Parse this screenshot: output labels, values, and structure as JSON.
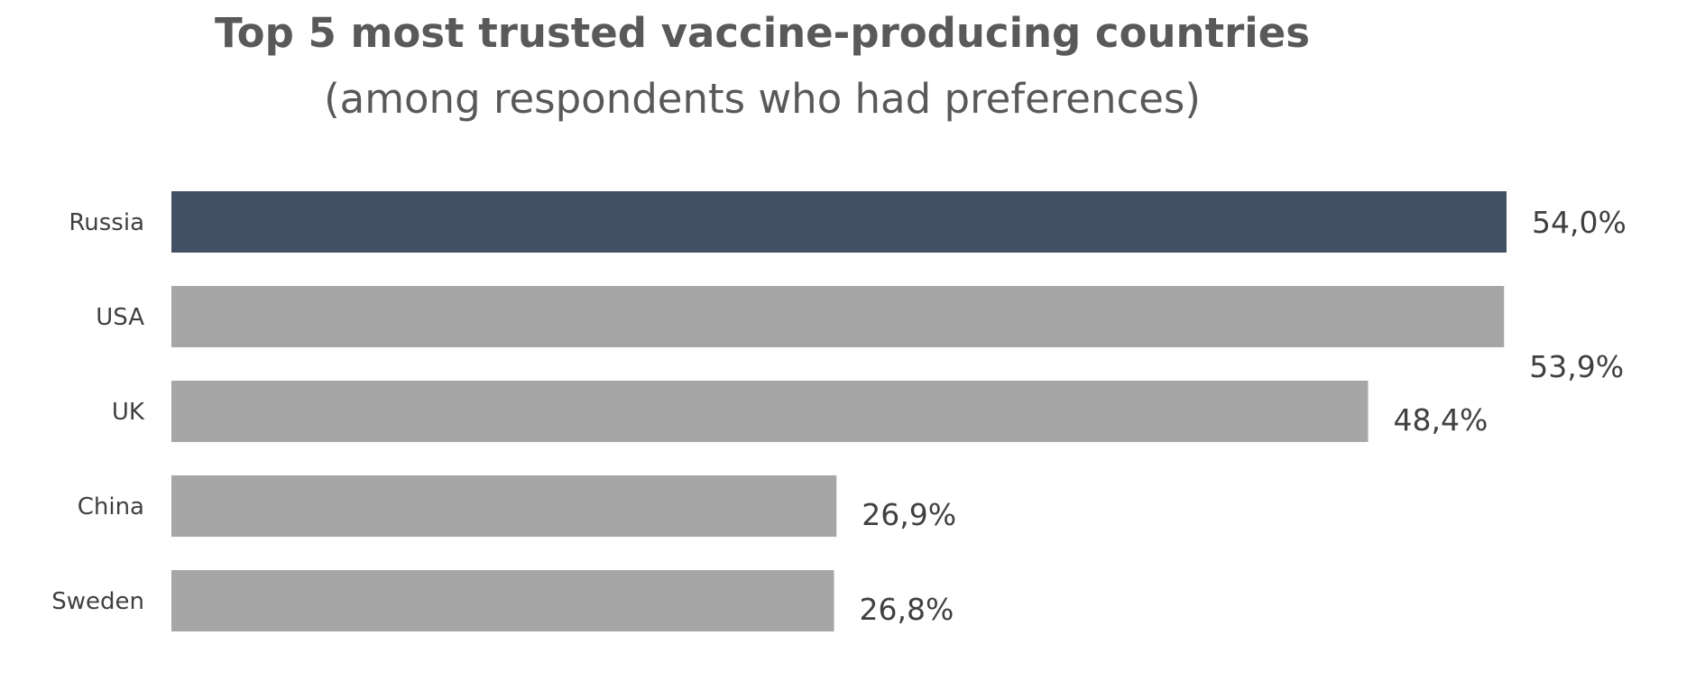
{
  "chart_data": {
    "type": "bar",
    "orientation": "horizontal",
    "title": "Top 5 most trusted vaccine-producing countries",
    "subtitle": "(among respondents who had preferences)",
    "categories": [
      "Russia",
      "USA",
      "UK",
      "China",
      "Sweden"
    ],
    "values": [
      54.0,
      53.9,
      48.4,
      26.9,
      26.8
    ],
    "value_labels": [
      "54,0%",
      "53,9%",
      "48,4%",
      "26,9%",
      "26,8%"
    ],
    "xlim": [
      0,
      54.0
    ],
    "grid": false,
    "legend": "none",
    "colors": {
      "highlight": "#435064",
      "default": "#a6a6a6",
      "text": "#404040",
      "title": "#595959"
    },
    "highlighted_category": "Russia"
  }
}
